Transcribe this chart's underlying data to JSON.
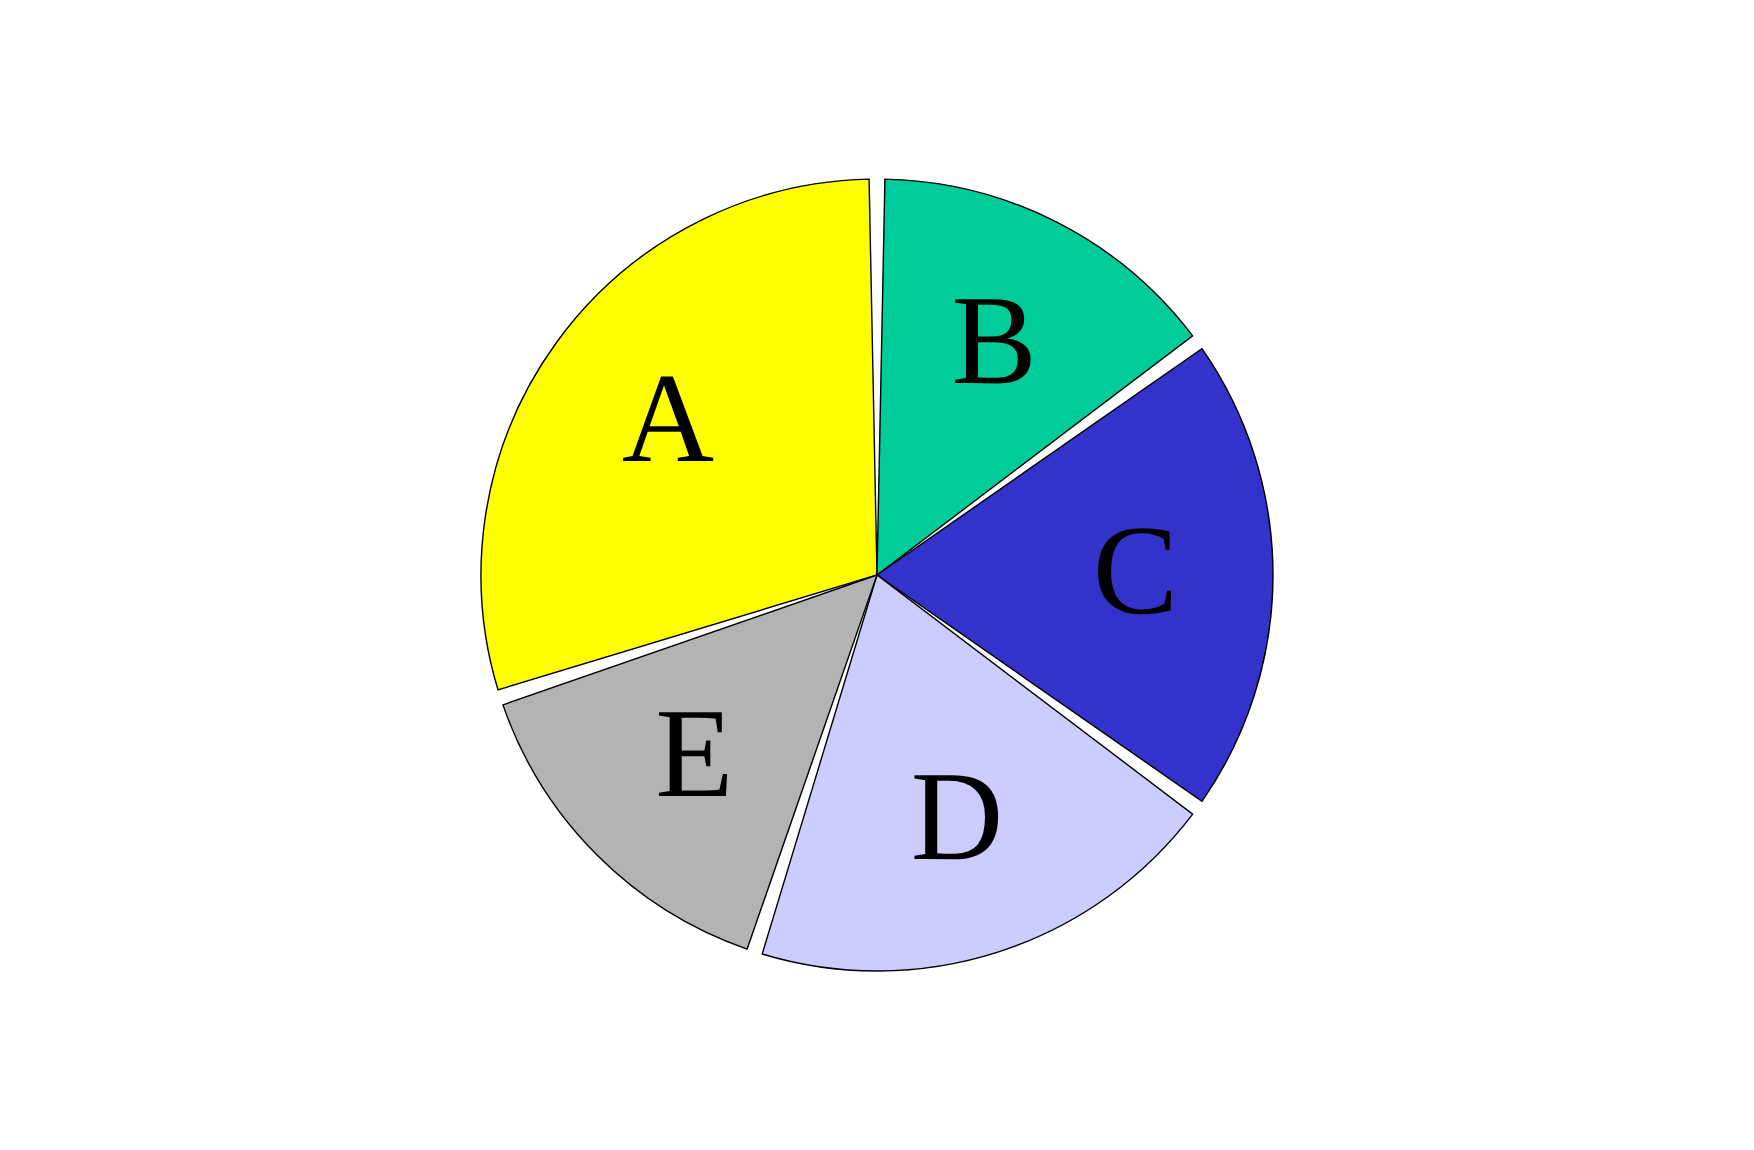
{
  "chart_data": {
    "type": "pie",
    "categories": [
      "A",
      "B",
      "C",
      "D",
      "E"
    ],
    "values": [
      30,
      15,
      20,
      20,
      15
    ],
    "colors": [
      "#ffff00",
      "#00cc99",
      "#3333cc",
      "#ccccff",
      "#b3b3b3"
    ]
  }
}
